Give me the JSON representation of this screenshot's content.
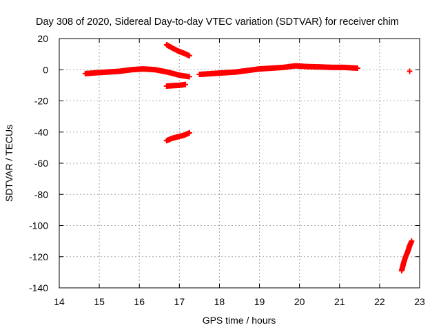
{
  "chart_data": {
    "type": "scatter",
    "title": "Day 308 of 2020, Sidereal Day-to-day VTEC variation (SDTVAR) for receiver chim",
    "xlabel": "GPS time / hours",
    "ylabel": "SDTVAR / TECUs",
    "xlim": [
      14,
      23
    ],
    "ylim": [
      -140,
      20
    ],
    "xticks": [
      14,
      15,
      16,
      17,
      18,
      19,
      20,
      21,
      22,
      23
    ],
    "yticks": [
      20,
      0,
      -20,
      -40,
      -60,
      -80,
      -100,
      -120,
      -140
    ],
    "grid": true,
    "legend": "none",
    "marker": "plus",
    "color": "#ff0000",
    "series": [
      {
        "x": [
          14.65,
          14.9,
          15.2,
          15.5,
          15.8,
          16.1,
          16.4,
          16.7,
          17.0,
          17.25
        ],
        "y": [
          -2.5,
          -2,
          -1.5,
          -1,
          0,
          0.5,
          0,
          -1.5,
          -3.5,
          -4.5
        ]
      },
      {
        "x": [
          16.68,
          16.82,
          16.97,
          17.12,
          17.25
        ],
        "y": [
          16,
          14,
          12,
          10.5,
          9
        ]
      },
      {
        "x": [
          16.68,
          16.85,
          17.0,
          17.15
        ],
        "y": [
          -10.5,
          -10.2,
          -10,
          -9.5
        ]
      },
      {
        "x": [
          16.68,
          16.82,
          16.97,
          17.12,
          17.25
        ],
        "y": [
          -45.5,
          -44,
          -43,
          -42,
          -40.5
        ]
      },
      {
        "x": [
          17.5,
          17.8,
          18.1,
          18.4,
          18.7,
          19.0,
          19.3,
          19.6,
          19.9,
          20.2,
          20.5,
          20.8,
          21.1,
          21.45
        ],
        "y": [
          -3,
          -2.5,
          -2,
          -1.5,
          -0.5,
          0.5,
          1,
          1.5,
          2.5,
          2,
          1.8,
          1.5,
          1.5,
          1
        ]
      },
      {
        "x": [
          22.75
        ],
        "y": [
          -1
        ]
      },
      {
        "x": [
          22.55,
          22.6,
          22.65,
          22.7,
          22.75,
          22.8
        ],
        "y": [
          -129,
          -124,
          -120,
          -117,
          -113,
          -110
        ]
      }
    ]
  }
}
